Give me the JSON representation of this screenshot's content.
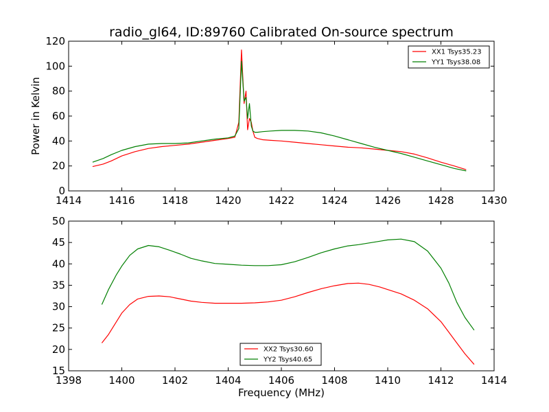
{
  "figure": {
    "title": "radio_gl64, ID:89760 Calibrated On-source spectrum",
    "xlabel": "Frequency (MHz)"
  },
  "colors": {
    "red": "#ff0000",
    "green": "#007f00"
  },
  "chart_data": [
    {
      "type": "line",
      "title": "radio_gl64, ID:89760 Calibrated On-source spectrum",
      "xlabel": "",
      "ylabel": "Power in Kelvin",
      "xlim": [
        1414,
        1430
      ],
      "ylim": [
        0,
        120
      ],
      "xticks": [
        "1414",
        "1416",
        "1418",
        "1420",
        "1422",
        "1424",
        "1426",
        "1428",
        "1430"
      ],
      "yticks": [
        "0",
        "20",
        "40",
        "60",
        "80",
        "100",
        "120"
      ],
      "legend_position": "top-right",
      "series": [
        {
          "name": "XX1 Tsys35.23",
          "color": "#ff0000",
          "x": [
            1414.9,
            1415.3,
            1415.6,
            1416.0,
            1416.5,
            1417.0,
            1417.5,
            1418.0,
            1418.5,
            1419.0,
            1419.5,
            1420.0,
            1420.25,
            1420.4,
            1420.5,
            1420.6,
            1420.67,
            1420.73,
            1420.8,
            1420.87,
            1420.93,
            1421.0,
            1421.1,
            1421.3,
            1421.6,
            1422.0,
            1422.5,
            1423.0,
            1423.5,
            1424.0,
            1424.5,
            1425.0,
            1425.5,
            1426.0,
            1426.5,
            1427.0,
            1427.5,
            1428.0,
            1428.5,
            1428.95
          ],
          "y": [
            19.5,
            21.5,
            24,
            28,
            31.5,
            34,
            35.5,
            36.5,
            37.5,
            39,
            40.5,
            42,
            43,
            55,
            113,
            70,
            80,
            49,
            58,
            55,
            48,
            43,
            42,
            41,
            40.5,
            40,
            39,
            38,
            37,
            36,
            35,
            34.5,
            33.5,
            32.5,
            31.5,
            29.5,
            26.5,
            23,
            20,
            17
          ]
        },
        {
          "name": "YY1 Tsys38.08",
          "color": "#007f00",
          "x": [
            1414.9,
            1415.3,
            1415.6,
            1416.0,
            1416.5,
            1417.0,
            1417.5,
            1418.0,
            1418.5,
            1419.0,
            1419.5,
            1420.0,
            1420.25,
            1420.4,
            1420.5,
            1420.6,
            1420.67,
            1420.73,
            1420.8,
            1420.87,
            1420.93,
            1421.0,
            1421.1,
            1421.3,
            1421.6,
            1422.0,
            1422.5,
            1423.0,
            1423.5,
            1424.0,
            1424.5,
            1425.0,
            1425.5,
            1426.0,
            1426.5,
            1427.0,
            1427.5,
            1428.0,
            1428.5,
            1428.95
          ],
          "y": [
            23,
            26,
            29,
            32.5,
            35.5,
            37.5,
            38,
            38,
            38.5,
            40,
            41.5,
            42.5,
            44,
            50,
            104,
            72,
            75,
            58,
            70,
            52,
            48,
            47,
            47,
            47.5,
            48,
            48.5,
            48.5,
            48,
            46.5,
            44,
            41,
            38,
            35,
            32.5,
            30,
            27,
            24,
            21,
            18,
            16
          ]
        }
      ]
    },
    {
      "type": "line",
      "title": "",
      "xlabel": "Frequency (MHz)",
      "ylabel": "",
      "xlim": [
        1398,
        1414
      ],
      "ylim": [
        15,
        50
      ],
      "xticks": [
        "1398",
        "1400",
        "1402",
        "1404",
        "1406",
        "1408",
        "1410",
        "1412",
        "1414"
      ],
      "yticks": [
        "15",
        "20",
        "25",
        "30",
        "35",
        "40",
        "45",
        "50"
      ],
      "legend_position": "bottom-center",
      "series": [
        {
          "name": "XX2 Tsys30.60",
          "color": "#ff0000",
          "x": [
            1399.25,
            1399.5,
            1399.8,
            1400.0,
            1400.3,
            1400.6,
            1401.0,
            1401.4,
            1401.8,
            1402.2,
            1402.6,
            1403.0,
            1403.5,
            1404.0,
            1404.5,
            1405.0,
            1405.5,
            1406.0,
            1406.5,
            1407.0,
            1407.5,
            1408.0,
            1408.5,
            1408.9,
            1409.3,
            1409.7,
            1410.0,
            1410.5,
            1411.0,
            1411.5,
            1412.0,
            1412.3,
            1412.6,
            1412.9,
            1413.25
          ],
          "y": [
            21.5,
            23.5,
            26.5,
            28.5,
            30.5,
            31.8,
            32.4,
            32.5,
            32.3,
            31.8,
            31.3,
            31.0,
            30.8,
            30.8,
            30.8,
            30.9,
            31.1,
            31.5,
            32.3,
            33.3,
            34.2,
            34.9,
            35.4,
            35.5,
            35.2,
            34.6,
            34.0,
            33.0,
            31.5,
            29.5,
            26.5,
            24.0,
            21.5,
            19.0,
            16.5
          ]
        },
        {
          "name": "YY2 Tsys40.65",
          "color": "#007f00",
          "x": [
            1399.25,
            1399.5,
            1399.8,
            1400.0,
            1400.3,
            1400.6,
            1401.0,
            1401.4,
            1401.8,
            1402.2,
            1402.6,
            1403.0,
            1403.5,
            1404.0,
            1404.5,
            1405.0,
            1405.5,
            1406.0,
            1406.5,
            1407.0,
            1407.5,
            1408.0,
            1408.5,
            1408.9,
            1409.3,
            1409.7,
            1410.0,
            1410.5,
            1411.0,
            1411.5,
            1412.0,
            1412.3,
            1412.6,
            1412.9,
            1413.25
          ],
          "y": [
            30.5,
            34.0,
            37.5,
            39.5,
            42.0,
            43.5,
            44.3,
            44.0,
            43.2,
            42.3,
            41.3,
            40.7,
            40.1,
            39.9,
            39.7,
            39.6,
            39.6,
            39.8,
            40.5,
            41.5,
            42.6,
            43.5,
            44.2,
            44.5,
            44.9,
            45.3,
            45.6,
            45.8,
            45.2,
            43.0,
            39.0,
            35.5,
            31.0,
            27.5,
            24.5
          ]
        }
      ]
    }
  ]
}
